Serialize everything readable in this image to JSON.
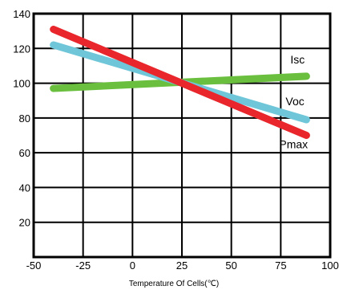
{
  "chart_data": {
    "type": "line",
    "title": "",
    "xlabel": "Temperature Of Cells(℃)",
    "ylabel": "",
    "xlim": [
      -50,
      100
    ],
    "ylim": [
      0,
      140
    ],
    "xticks": [
      -50,
      -25,
      0,
      25,
      50,
      75,
      100
    ],
    "yticks": [
      20,
      40,
      60,
      80,
      100,
      120,
      140
    ],
    "grid": true,
    "series": [
      {
        "name": "Isc",
        "color": "#6abf3e",
        "x": [
          -40,
          88
        ],
        "y": [
          97,
          104
        ]
      },
      {
        "name": "Voc",
        "color": "#6ec6d8",
        "x": [
          -40,
          88
        ],
        "y": [
          122,
          79
        ]
      },
      {
        "name": "Pmax",
        "color": "#e8262b",
        "x": [
          -40,
          88
        ],
        "y": [
          131,
          70
        ]
      }
    ]
  }
}
